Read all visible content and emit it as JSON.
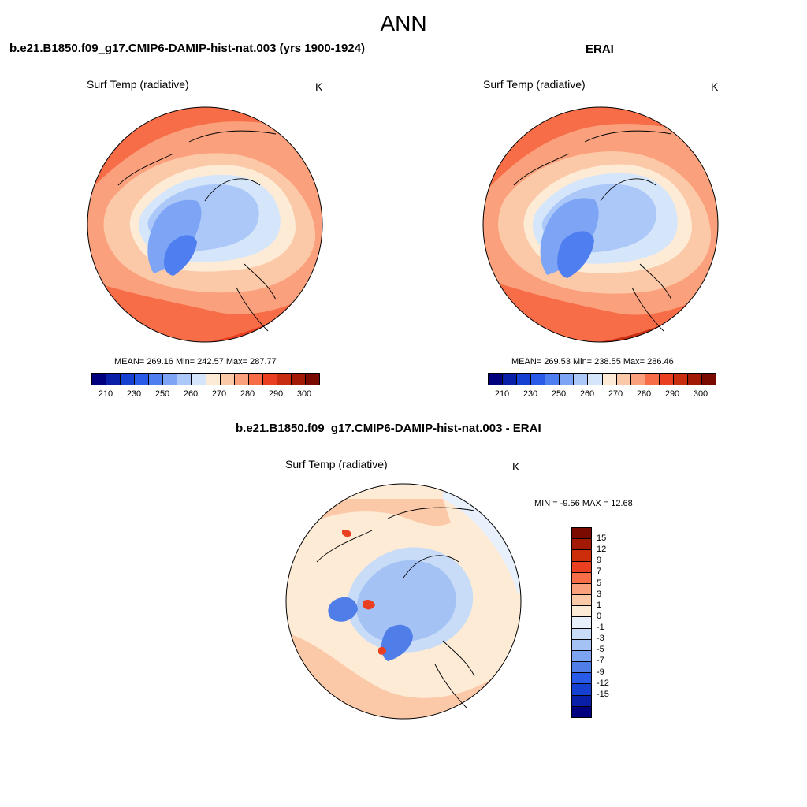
{
  "figure": {
    "title": "ANN"
  },
  "panels": [
    {
      "title": "b.e21.B1850.f09_g17.CMIP6-DAMIP-hist-nat.003 (yrs 1900-1924)",
      "variable": "Surf Temp (radiative)",
      "units": "K",
      "stats_text": "MEAN= 269.16  Min= 242.57  Max= 287.77"
    },
    {
      "title": "ERAI",
      "variable": "Surf Temp (radiative)",
      "units": "K",
      "stats_text": "MEAN= 269.53  Min= 238.55  Max= 286.46"
    },
    {
      "title": "b.e21.B1850.f09_g17.CMIP6-DAMIP-hist-nat.003 - ERAI",
      "variable": "Surf Temp (radiative)",
      "units": "K",
      "stats_text": "MIN =  -9.56 MAX =  12.68"
    }
  ],
  "colorbars": {
    "abs": {
      "colors": [
        "#00007f",
        "#0a1fa8",
        "#1540d2",
        "#2a5be8",
        "#4f7ef0",
        "#7da4f5",
        "#acc8f8",
        "#d6e6fa",
        "#fdebd6",
        "#fcc9a8",
        "#fba07c",
        "#f76d48",
        "#ea3f20",
        "#c82d0f",
        "#a21a06",
        "#7a0a00"
      ],
      "tick_labels": [
        "210",
        "230",
        "250",
        "260",
        "270",
        "280",
        "290",
        "300"
      ]
    },
    "diff": {
      "colors": [
        "#7a0a00",
        "#a21a06",
        "#cc2d0a",
        "#ea3f20",
        "#f76d48",
        "#fba07c",
        "#fcc9a8",
        "#fdebd6",
        "#e8f1fb",
        "#c8dcf8",
        "#a4c2f4",
        "#7ca4f0",
        "#507ee8",
        "#2a5be8",
        "#1540d2",
        "#0a1fa8",
        "#00007f"
      ],
      "tick_labels": [
        "15",
        "12",
        "9",
        "7",
        "5",
        "3",
        "1",
        "0",
        "-1",
        "-3",
        "-5",
        "-7",
        "-9",
        "-12",
        "-15"
      ]
    }
  },
  "colors": {
    "cold_deep": "#4f7ef0",
    "cold_mid": "#7da4f5",
    "cold_light": "#acc8f8",
    "cold_pale": "#d6e6fa",
    "warm_pale": "#fdebd6",
    "warm_light": "#fcc9a8",
    "warm_mid": "#fba07c",
    "warm_hot": "#f76d48",
    "warm_dark": "#ea3f20",
    "warm_deep": "#c82d0f",
    "diff_warm_pale": "#fdebd6",
    "diff_warm": "#fcc9a8",
    "diff_warm_mid": "#fba07c",
    "diff_cold_pale": "#e8f1fb",
    "diff_cold": "#c8dcf8",
    "diff_cold_mid": "#a4c2f4",
    "diff_cold_strong": "#507ee8",
    "diff_hot": "#ea3f20"
  }
}
